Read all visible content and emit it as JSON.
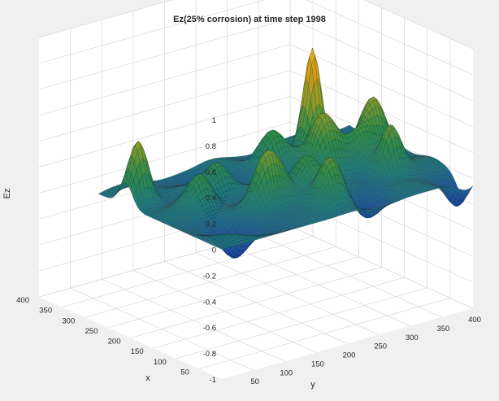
{
  "chart_data": {
    "type": "surface3d",
    "title": "Ez(25% corrosion) at time step 1998",
    "xlabel": "x",
    "ylabel": "y",
    "zlabel": "Ez",
    "xlim": [
      0,
      400
    ],
    "ylim": [
      0,
      400
    ],
    "zlim": [
      -1,
      1
    ],
    "xticks": [
      50,
      100,
      150,
      200,
      250,
      300,
      350,
      400
    ],
    "yticks": [
      50,
      100,
      150,
      200,
      250,
      300,
      350,
      400
    ],
    "zticks": [
      -1,
      -0.8,
      -0.6,
      -0.4,
      -0.2,
      0,
      0.2,
      0.4,
      0.6,
      0.8,
      1
    ],
    "zticklabels": [
      "-1",
      "-0.8",
      "-0.6",
      "-0.4",
      "-0.2",
      "0",
      "0.2",
      "0.4",
      "0.6",
      "0.8",
      "1"
    ],
    "grid": true,
    "colormap": [
      "#0a2a8a",
      "#1f4e9e",
      "#1f7a7a",
      "#2f8a4a",
      "#8a9a2a",
      "#c99a1a",
      "#e8b020"
    ],
    "surface_domain": {
      "x": [
        0,
        270
      ],
      "y": [
        0,
        400
      ]
    },
    "peaks": [
      {
        "x": 200,
        "y": 290,
        "z": 0.85,
        "s": 12
      },
      {
        "x": 150,
        "y": 270,
        "z": 0.45,
        "s": 20
      },
      {
        "x": 205,
        "y": 228,
        "z": 0.25,
        "s": 18
      },
      {
        "x": 155,
        "y": 355,
        "z": 0.45,
        "s": 18
      },
      {
        "x": 85,
        "y": 330,
        "z": 0.4,
        "s": 15
      },
      {
        "x": 135,
        "y": 320,
        "z": 0.2,
        "s": 16
      },
      {
        "x": 50,
        "y": 210,
        "z": 0.35,
        "s": 18
      },
      {
        "x": 110,
        "y": 215,
        "z": 0.25,
        "s": 18
      },
      {
        "x": 95,
        "y": 160,
        "z": 0.3,
        "s": 16
      },
      {
        "x": 95,
        "y": 135,
        "z": 0.3,
        "s": 14
      },
      {
        "x": 150,
        "y": 75,
        "z": 0.25,
        "s": 16
      },
      {
        "x": 210,
        "y": 20,
        "z": 0.5,
        "s": 14
      },
      {
        "x": 180,
        "y": 125,
        "z": 0.2,
        "s": 16
      },
      {
        "x": 60,
        "y": 65,
        "z": -0.25,
        "s": 18
      },
      {
        "x": 40,
        "y": 260,
        "z": -0.15,
        "s": 20
      },
      {
        "x": 230,
        "y": 150,
        "z": -0.35,
        "s": 16
      },
      {
        "x": 20,
        "y": 390,
        "z": -0.2,
        "s": 14
      }
    ]
  }
}
